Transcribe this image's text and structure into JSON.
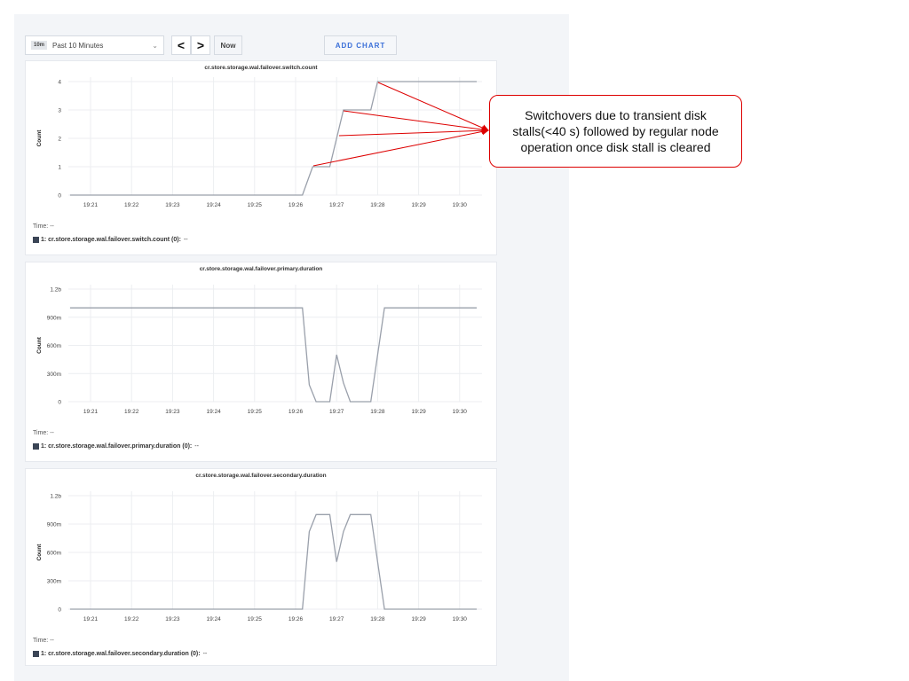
{
  "toolbar": {
    "range_badge": "10m",
    "range_label": "Past 10 Minutes",
    "prev_icon": "chevron-left-icon",
    "next_icon": "chevron-right-icon",
    "prev_glyph": "<",
    "next_glyph": ">",
    "dropdown_glyph": "⌄",
    "now_label": "Now",
    "add_chart_label": "ADD CHART"
  },
  "annotation": {
    "text": "Switchovers due to transient disk stalls(<40 s) followed by regular node operation once disk stall is cleared",
    "color": "#dd0000"
  },
  "chart_data": [
    {
      "type": "line",
      "title": "cr.store.storage.wal.failover.switch.count",
      "ylabel": "Count",
      "ylim": [
        0,
        4
      ],
      "yticks": [
        0,
        1,
        2,
        3,
        4
      ],
      "ytick_labels": [
        "0",
        "1",
        "2",
        "3",
        "4"
      ],
      "xticks": [
        "19:21",
        "19:22",
        "19:23",
        "19:24",
        "19:25",
        "19:26",
        "19:27",
        "19:28",
        "19:29",
        "19:30"
      ],
      "grid": true,
      "x": [
        "19:20:30",
        "19:26:10",
        "19:26:25",
        "19:26:50",
        "19:27:00",
        "19:27:10",
        "19:27:50",
        "19:28:00",
        "19:30:25"
      ],
      "y": [
        0,
        0,
        1,
        1,
        2,
        3,
        3,
        4,
        4
      ],
      "time_label": "Time:",
      "time_value": "--",
      "legend": "1: cr.store.storage.wal.failover.switch.count (0):",
      "legend_value": "--"
    },
    {
      "type": "line",
      "title": "cr.store.storage.wal.failover.primary.duration",
      "ylabel": "Count",
      "ylim": [
        0,
        1.2
      ],
      "yticks": [
        0,
        0.3,
        0.6,
        0.9,
        1.2
      ],
      "ytick_labels": [
        "0",
        "300m",
        "600m",
        "900m",
        "1.2b"
      ],
      "xticks": [
        "19:21",
        "19:22",
        "19:23",
        "19:24",
        "19:25",
        "19:26",
        "19:27",
        "19:28",
        "19:29",
        "19:30"
      ],
      "grid": true,
      "x": [
        "19:20:30",
        "19:26:10",
        "19:26:20",
        "19:26:30",
        "19:26:50",
        "19:27:00",
        "19:27:10",
        "19:27:20",
        "19:27:50",
        "19:28:00",
        "19:28:10",
        "19:30:25"
      ],
      "y": [
        1,
        1,
        0.18,
        0,
        0,
        0.5,
        0.2,
        0,
        0,
        0.5,
        1,
        1
      ],
      "time_label": "Time:",
      "time_value": "--",
      "legend": "1: cr.store.storage.wal.failover.primary.duration (0):",
      "legend_value": "--"
    },
    {
      "type": "line",
      "title": "cr.store.storage.wal.failover.secondary.duration",
      "ylabel": "Count",
      "ylim": [
        0,
        1.2
      ],
      "yticks": [
        0,
        0.3,
        0.6,
        0.9,
        1.2
      ],
      "ytick_labels": [
        "0",
        "300m",
        "600m",
        "900m",
        "1.2b"
      ],
      "xticks": [
        "19:21",
        "19:22",
        "19:23",
        "19:24",
        "19:25",
        "19:26",
        "19:27",
        "19:28",
        "19:29",
        "19:30"
      ],
      "grid": true,
      "x": [
        "19:20:30",
        "19:26:10",
        "19:26:20",
        "19:26:30",
        "19:26:50",
        "19:27:00",
        "19:27:10",
        "19:27:20",
        "19:27:50",
        "19:28:00",
        "19:28:10",
        "19:30:25"
      ],
      "y": [
        0,
        0,
        0.82,
        1,
        1,
        0.5,
        0.82,
        1,
        1,
        0.5,
        0,
        0
      ],
      "time_label": "Time:",
      "time_value": "--",
      "legend": "1: cr.store.storage.wal.failover.secondary.duration (0):",
      "legend_value": "--"
    }
  ]
}
